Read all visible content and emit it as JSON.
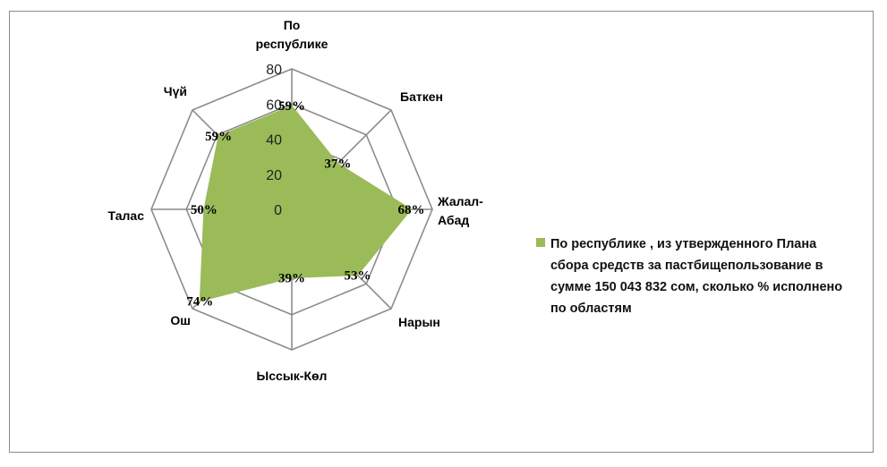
{
  "chart_data": {
    "type": "radar",
    "categories": [
      "По республике",
      "Баткен",
      "Жалал-Абад",
      "Нарын",
      "Ыссык-Көл",
      "Ош",
      "Талас",
      "Чүй"
    ],
    "category_lines": [
      [
        "По",
        "республике"
      ],
      [
        "Баткен"
      ],
      [
        "Жалал-",
        "Абад"
      ],
      [
        "Нарын"
      ],
      [
        "Ыссык-Көл"
      ],
      [
        "Ош"
      ],
      [
        "Талас"
      ],
      [
        "Чүй"
      ]
    ],
    "values": [
      59,
      37,
      68,
      53,
      39,
      74,
      50,
      59
    ],
    "data_labels": [
      "59%",
      "37%",
      "68%",
      "53%",
      "39%",
      "74%",
      "50%",
      "59%"
    ],
    "radial_ticks": [
      "0",
      "20",
      "40",
      "60",
      "80"
    ],
    "rlim": [
      0,
      80
    ],
    "grid": true,
    "legend_position": "right",
    "series": [
      {
        "name": "По республике , из утвержденного Плана сбора средств за пастбищепользование в сумме 150 043 832 сом, сколько % исполнено по областям",
        "color": "#9BBB59"
      }
    ]
  }
}
